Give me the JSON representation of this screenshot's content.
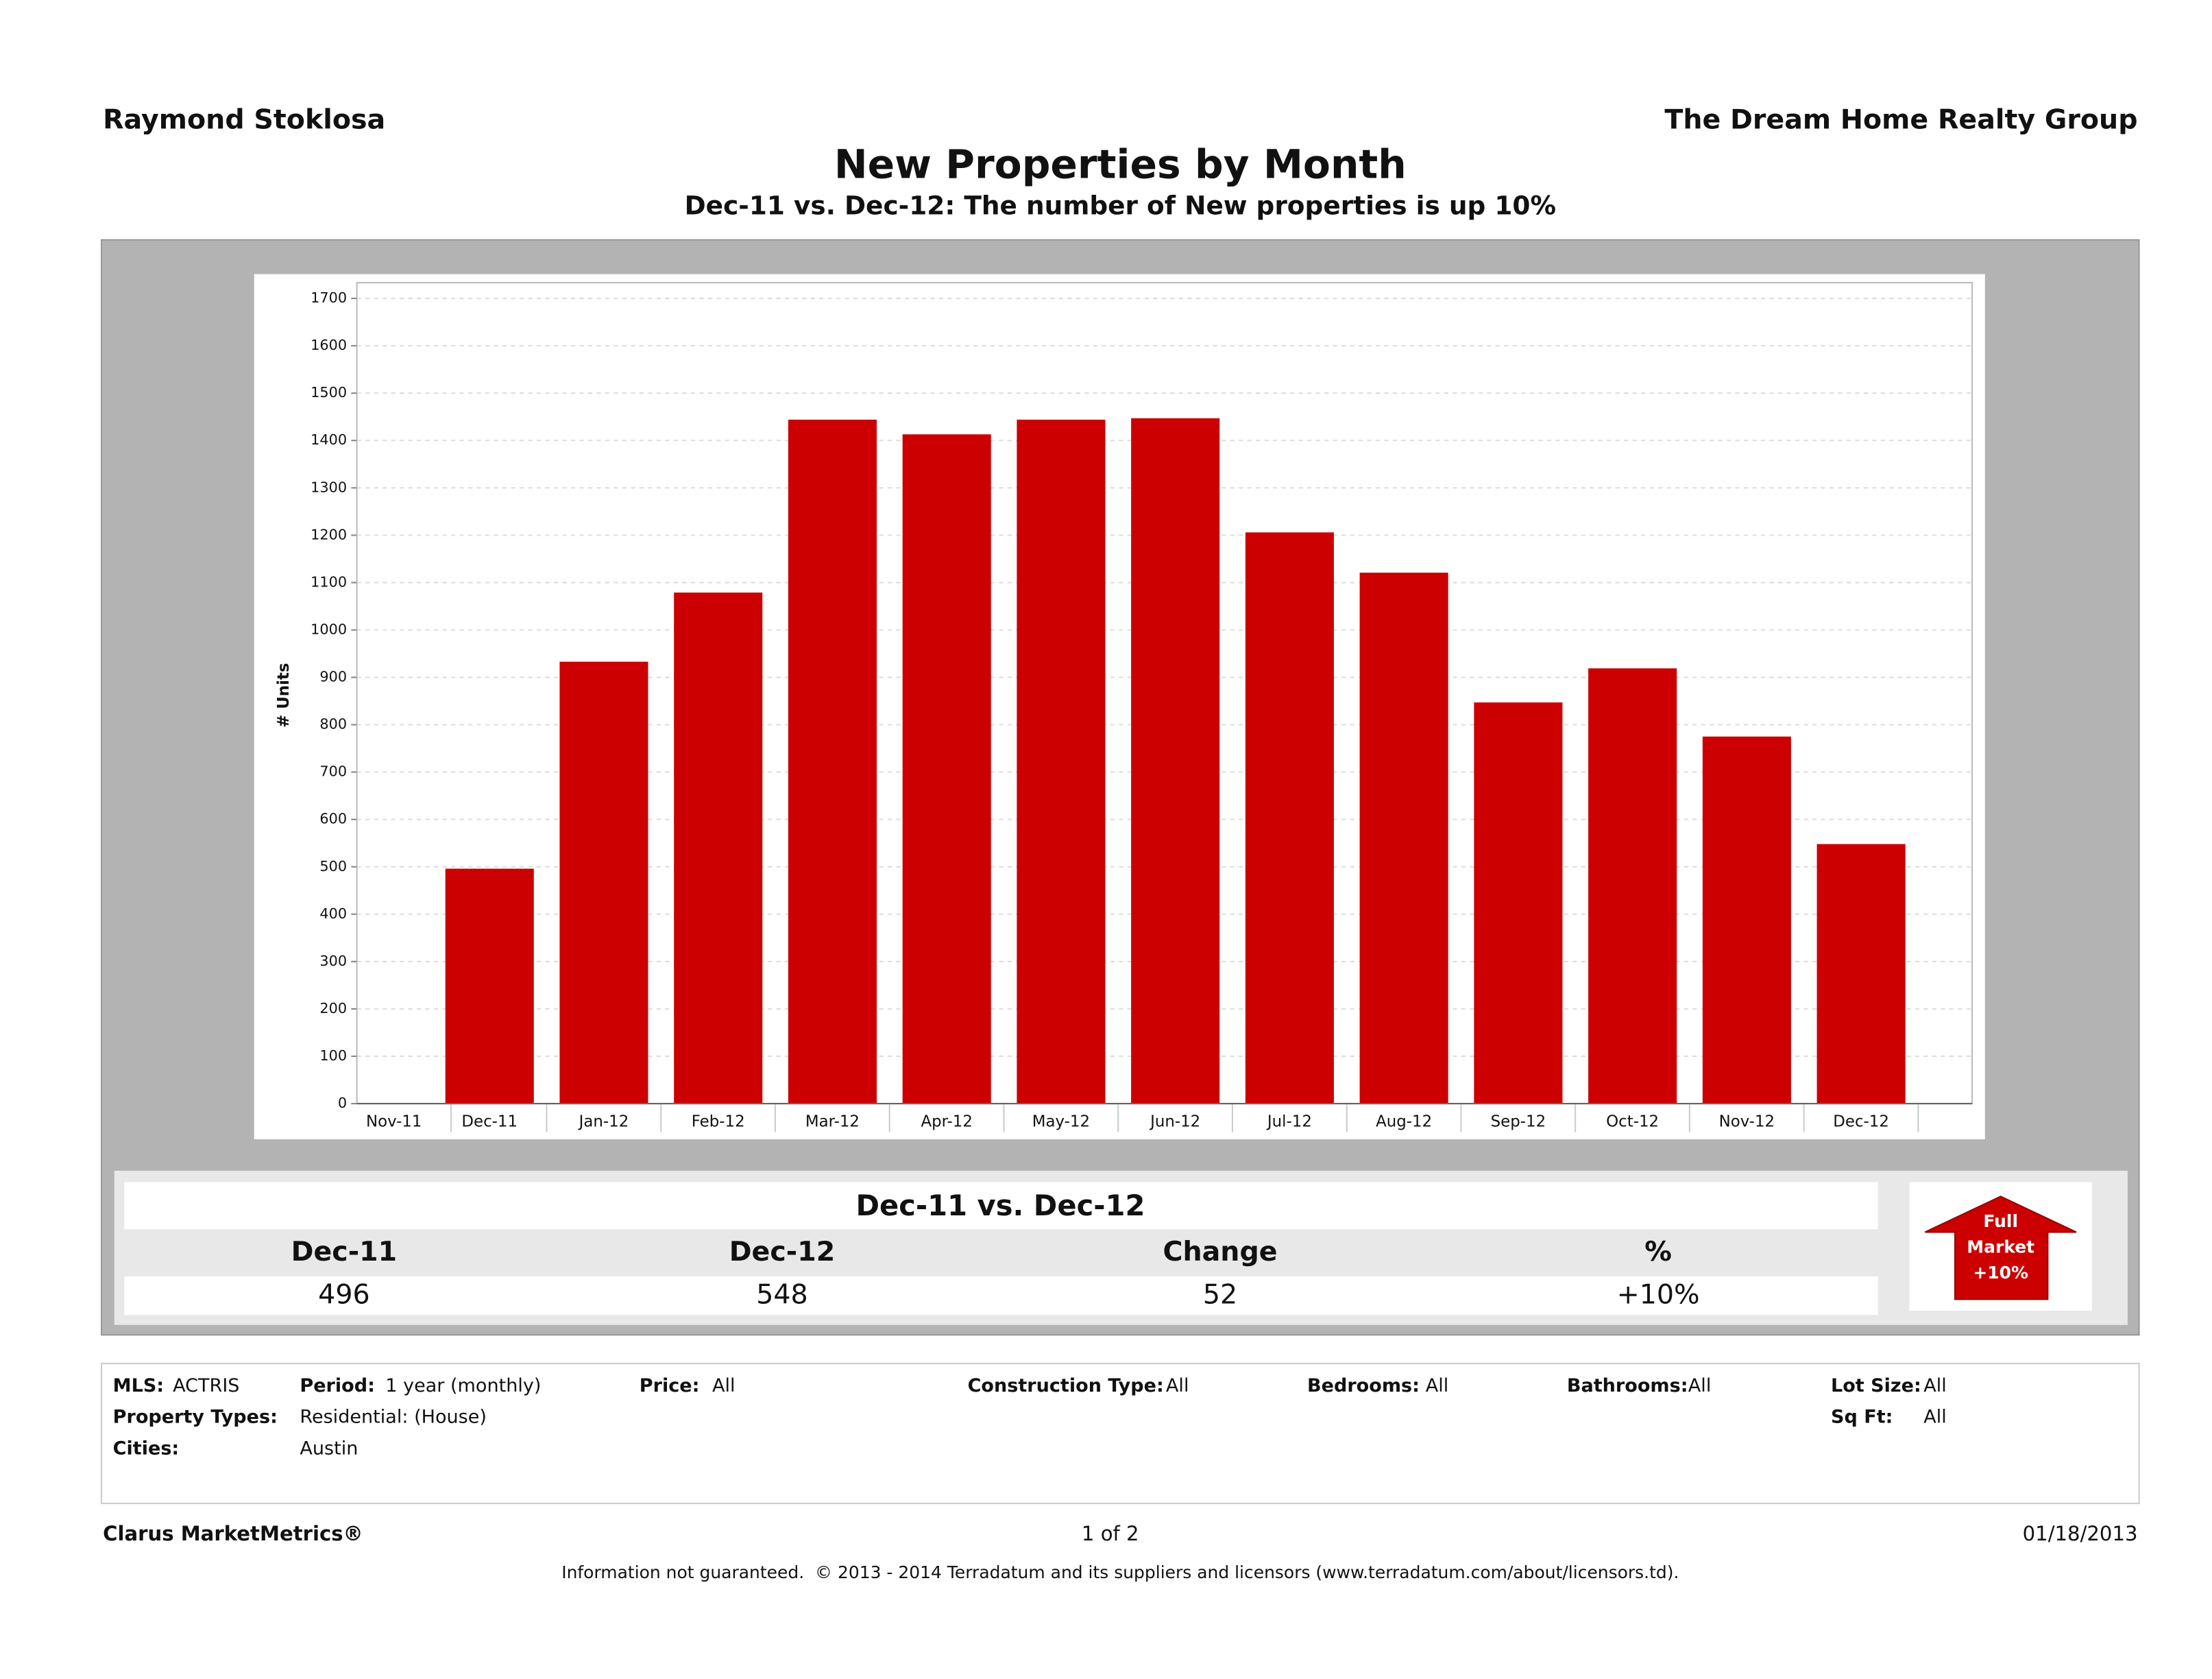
{
  "header": {
    "agent": "Raymond Stoklosa",
    "company": "The Dream Home Realty Group"
  },
  "chart_data": {
    "type": "bar",
    "title": "New Properties by Month",
    "subtitle": "Dec-11 vs. Dec-12: The number of New properties is up 10%",
    "y_label": "# Units",
    "categories": [
      "Nov-11",
      "Dec-11",
      "Jan-12",
      "Feb-12",
      "Mar-12",
      "Apr-12",
      "May-12",
      "Jun-12",
      "Jul-12",
      "Aug-12",
      "Sep-12",
      "Oct-12",
      "Nov-12",
      "Dec-12"
    ],
    "values": [
      null,
      496,
      933,
      1079,
      1444,
      1413,
      1444,
      1447,
      1206,
      1121,
      847,
      919,
      775,
      548
    ],
    "color": "#cc0000",
    "ylim": [
      0,
      1700
    ],
    "yticks": [
      0,
      100,
      200,
      300,
      400,
      500,
      600,
      700,
      800,
      900,
      1000,
      1100,
      1200,
      1300,
      1400,
      1500,
      1600,
      1700
    ],
    "grid": true
  },
  "summary": {
    "title": "Dec-11 vs. Dec-12",
    "headers": [
      "Dec-11",
      "Dec-12",
      "Change",
      "%"
    ],
    "values": [
      496,
      548,
      52,
      "+10%"
    ],
    "badge": [
      "Full",
      "Market",
      "+10%"
    ]
  },
  "filters": [
    {
      "label": "MLS:",
      "value": "ACTRIS"
    },
    {
      "label": "Period:",
      "value": "1 year (monthly)"
    },
    {
      "label": "Price:",
      "value": "All"
    },
    {
      "label": "Construction Type:",
      "value": "All"
    },
    {
      "label": "Bedrooms:",
      "value": "All"
    },
    {
      "label": "Bathrooms:",
      "value": "All"
    },
    {
      "label": "Lot Size:",
      "value": "All"
    },
    {
      "label": "Property Types:",
      "value": "Residential: (House)"
    },
    {
      "label": "Sq Ft:",
      "value": "All"
    },
    {
      "label": "Cities:",
      "value": "Austin"
    }
  ],
  "footer": {
    "brand": "Clarus MarketMetrics®",
    "page": "1 of 2",
    "date": "01/18/2013",
    "disclaimer": "Information not guaranteed.  © 2013 - 2014 Terradatum and its suppliers and licensors (www.terradatum.com/about/licensors.td)."
  }
}
